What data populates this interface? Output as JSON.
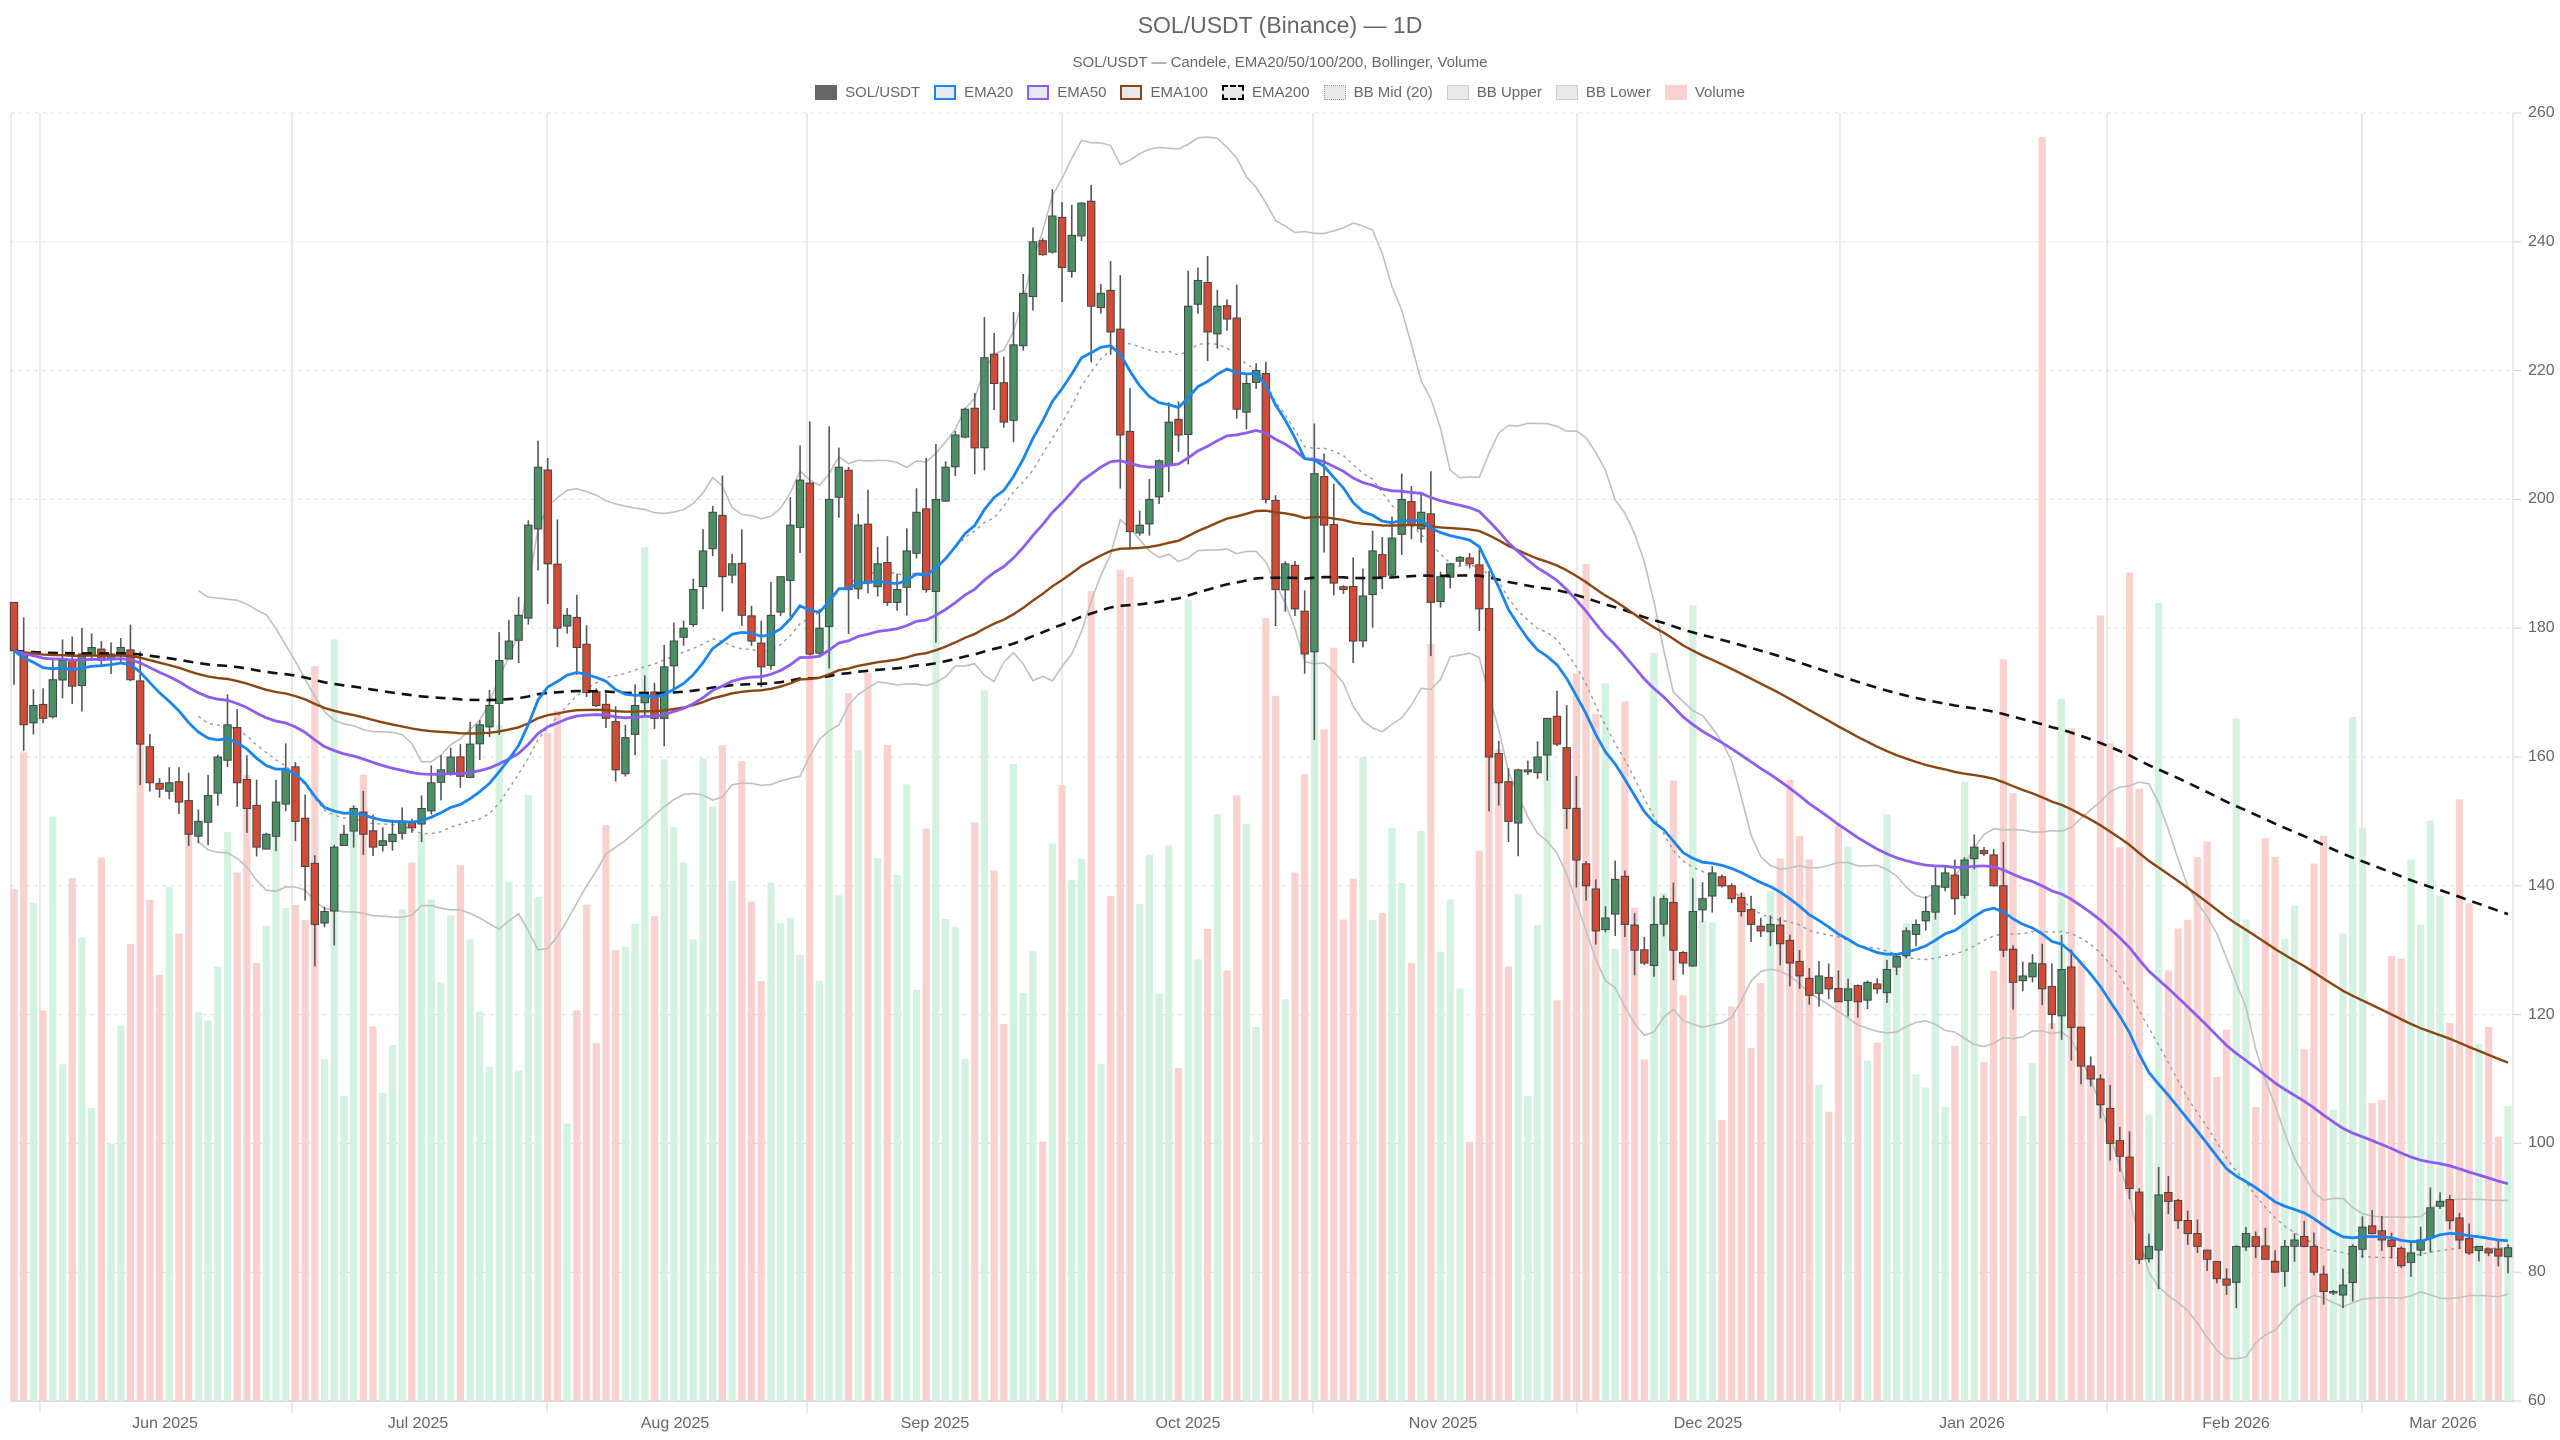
{
  "title": "SOL/USDT (Binance) — 1D",
  "subtitle": "SOL/USDT — Candele, EMA20/50/100/200, Bollinger, Volume",
  "legend": [
    {
      "label": "SOL/USDT",
      "kind": "candle",
      "color": "#666666"
    },
    {
      "label": "EMA20",
      "kind": "line",
      "color": "#1a85f0"
    },
    {
      "label": "EMA50",
      "kind": "line",
      "color": "#8e5cf0"
    },
    {
      "label": "EMA100",
      "kind": "line",
      "color": "#8b4513"
    },
    {
      "label": "EMA200",
      "kind": "dash",
      "color": "#000000"
    },
    {
      "label": "BB Mid (20)",
      "kind": "dot",
      "color": "#999999"
    },
    {
      "label": "BB Upper",
      "kind": "band",
      "color": "#bbbbbb"
    },
    {
      "label": "BB Lower",
      "kind": "band",
      "color": "#bbbbbb"
    },
    {
      "label": "Volume",
      "kind": "volume",
      "color": "#f9d2cf"
    }
  ],
  "colors": {
    "up": "#4a8f65",
    "down": "#d14b36",
    "wick": "#555555",
    "vol_up": "#d3f2e1",
    "vol_down": "#f9d2cf",
    "ema20": "#1a85f0",
    "ema50": "#8e5cf0",
    "ema100": "#8b4513",
    "ema200": "#111111",
    "bb": "#c0c0c0",
    "bbmid": "#999999",
    "grid": "#e6e6e6"
  },
  "chart_data": {
    "type": "candlestick",
    "title": "SOL/USDT (Binance) — 1D",
    "subtitle": "SOL/USDT — Candele, EMA20/50/100/200, Bollinger, Volume",
    "xlabel": "",
    "ylabel": "",
    "ylim": [
      60,
      260
    ],
    "yticks": [
      60,
      80,
      100,
      120,
      140,
      160,
      180,
      200,
      220,
      240,
      260
    ],
    "y_axis_position": "right",
    "xticks": [
      "Jun 2025",
      "Jul 2025",
      "Aug 2025",
      "Sep 2025",
      "Oct 2025",
      "Nov 2025",
      "Dec 2025",
      "Jan 2026",
      "Feb 2026",
      "Mar 2026"
    ],
    "grid": true,
    "legend_position": "top",
    "start_date": "2025-05-29",
    "end_date": "2026-03-18",
    "final_values": {
      "ema20": 85.5,
      "ema50": 95.8,
      "ema100": 112.8,
      "ema200": 134.7,
      "bb_upper": 90.5,
      "bb_lower": 78.0,
      "close": 83.8
    },
    "closes": [
      176.5,
      165,
      168,
      166,
      172,
      175,
      171,
      176,
      177,
      175,
      176,
      177,
      172,
      162,
      156,
      155,
      156,
      153,
      148,
      150,
      154,
      160,
      165,
      156,
      152,
      146,
      148,
      153,
      158,
      150,
      143,
      134,
      136,
      146,
      148,
      152,
      148,
      146,
      147,
      148,
      150,
      149,
      152,
      156,
      158,
      160,
      157,
      162,
      165,
      168,
      175,
      178,
      182,
      196,
      205,
      190,
      180,
      182,
      177,
      170,
      168,
      166,
      158,
      163,
      168,
      170,
      166,
      174,
      178,
      180,
      186,
      192,
      198,
      188,
      190,
      182,
      178,
      174,
      182,
      188,
      196,
      203,
      176,
      180,
      200,
      205,
      186,
      196,
      187,
      190,
      184,
      186,
      192,
      198,
      186,
      200,
      205,
      210,
      214,
      208,
      222,
      218,
      212,
      224,
      232,
      240,
      238,
      244,
      236,
      241,
      246,
      230,
      232,
      226,
      210,
      195,
      196,
      200,
      206,
      212,
      210,
      230,
      234,
      226,
      230,
      228,
      214,
      218,
      220,
      200,
      186,
      190,
      183,
      176,
      204,
      196,
      187,
      186,
      178,
      185,
      192,
      188,
      194,
      200,
      196,
      198,
      184,
      188,
      190,
      191,
      190,
      183,
      160,
      156,
      150,
      158,
      158,
      160,
      166,
      162,
      152,
      144,
      140,
      133,
      135,
      141,
      134,
      130,
      128,
      134,
      138,
      130,
      128,
      136,
      138,
      142,
      140,
      138,
      136,
      134,
      133,
      134,
      131,
      128,
      126,
      123,
      126,
      124,
      122,
      124,
      122,
      125,
      124,
      127,
      129,
      133,
      134,
      136,
      140,
      142,
      138,
      144,
      146,
      145,
      140,
      130,
      125,
      126,
      128,
      124,
      120,
      127,
      118,
      112,
      110,
      106,
      100,
      98,
      93,
      82,
      84,
      92,
      91,
      88,
      86,
      84,
      82,
      79,
      78,
      84,
      86,
      84,
      82,
      80,
      84,
      85,
      84,
      80,
      77,
      77,
      78,
      84,
      87,
      86,
      85,
      84,
      81,
      83,
      85,
      90,
      91,
      88,
      85,
      83,
      84,
      83,
      82.5,
      83.8
    ],
    "volume_relative": "secondary axis, scaled to plot height; green when close>=open, red otherwise"
  },
  "axis": {
    "y_ticks": [
      "260",
      "240",
      "220",
      "200",
      "180",
      "160",
      "140",
      "120",
      "100",
      "80",
      "60"
    ],
    "x_ticks": [
      "Jun 2025",
      "Jul 2025",
      "Aug 2025",
      "Sep 2025",
      "Oct 2025",
      "Nov 2025",
      "Dec 2025",
      "Jan 2026",
      "Feb 2026",
      "Mar 2026"
    ]
  }
}
